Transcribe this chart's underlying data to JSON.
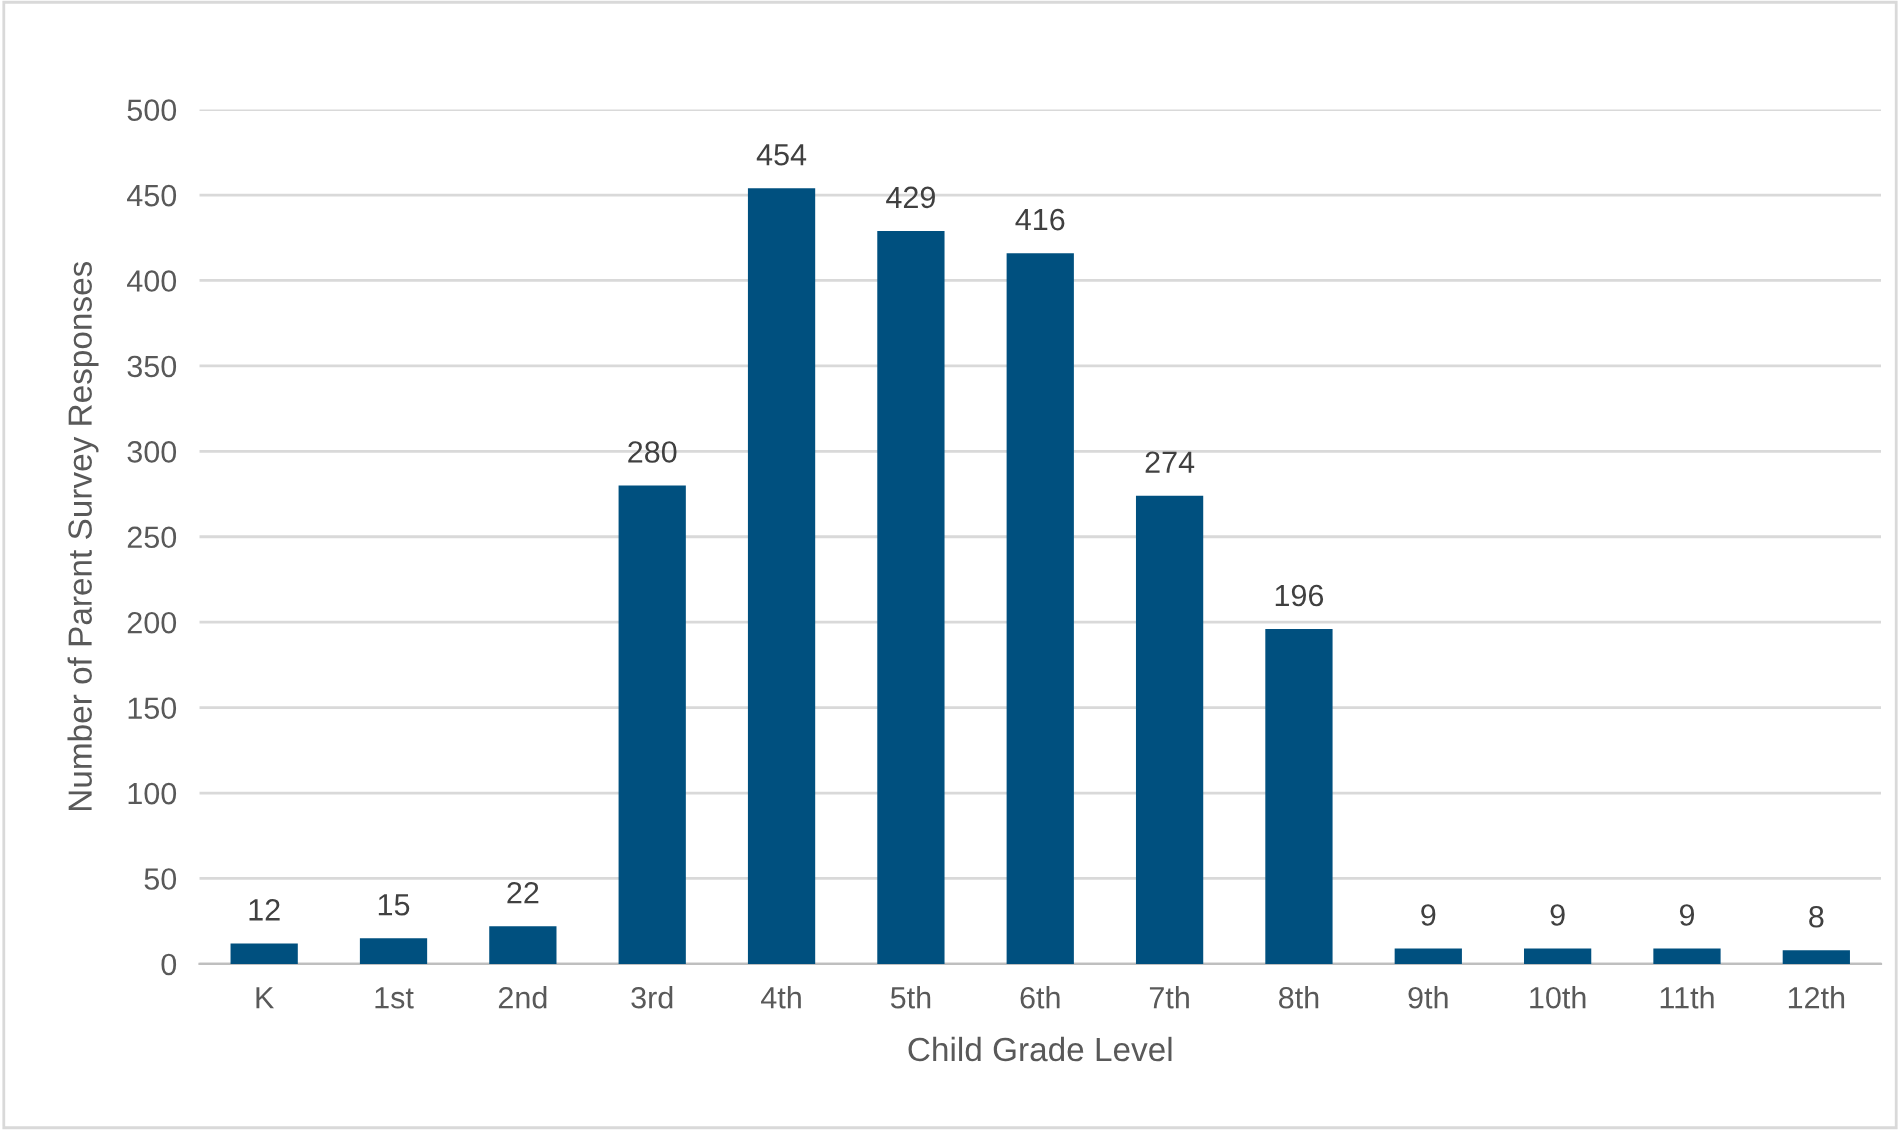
{
  "chart_data": {
    "type": "bar",
    "xlabel": "Child Grade Level",
    "ylabel": "Number of Parent Survey Responses",
    "categories": [
      "K",
      "1st",
      "2nd",
      "3rd",
      "4th",
      "5th",
      "6th",
      "7th",
      "8th",
      "9th",
      "10th",
      "11th",
      "12th"
    ],
    "values": [
      12,
      15,
      22,
      280,
      454,
      429,
      416,
      274,
      196,
      9,
      9,
      9,
      8
    ],
    "color": "#00507f",
    "ylim": [
      0,
      500
    ],
    "yticks": [
      0,
      50,
      100,
      150,
      200,
      250,
      300,
      350,
      400,
      450,
      500
    ],
    "grid": "y",
    "data_labels": true
  }
}
